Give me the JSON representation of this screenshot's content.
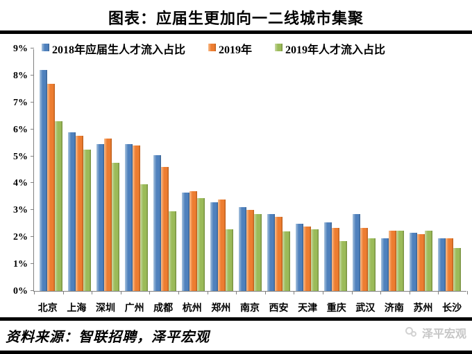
{
  "header": {
    "title": "图表：应届生更加向一二线城市集聚"
  },
  "chart_data": {
    "type": "bar",
    "title": "图表：应届生更加向一二线城市集聚",
    "categories": [
      "北京",
      "上海",
      "深圳",
      "广州",
      "成都",
      "杭州",
      "郑州",
      "南京",
      "西安",
      "天津",
      "重庆",
      "武汉",
      "济南",
      "苏州",
      "长沙"
    ],
    "series": [
      {
        "name": "2018年应届生人才流入占比",
        "color": "#4f81bd",
        "values": [
          8.2,
          5.9,
          5.45,
          5.45,
          5.05,
          3.65,
          3.3,
          3.1,
          2.85,
          2.5,
          2.55,
          2.85,
          1.95,
          2.15,
          1.95
        ]
      },
      {
        "name": "2019年",
        "color": "#ed7d31",
        "values": [
          7.7,
          5.75,
          5.65,
          5.4,
          4.6,
          3.7,
          3.4,
          3.0,
          2.75,
          2.4,
          2.35,
          2.35,
          2.25,
          2.1,
          1.95
        ]
      },
      {
        "name": "2019年人才流入占比",
        "color": "#9bbb59",
        "values": [
          6.3,
          5.25,
          4.75,
          3.95,
          2.95,
          3.45,
          2.3,
          2.85,
          2.2,
          2.3,
          1.85,
          1.95,
          2.25,
          2.25,
          1.6
        ]
      }
    ],
    "xlabel": "",
    "ylabel": "",
    "ylim": [
      0,
      9
    ],
    "y_tick_labels": [
      "0%",
      "1%",
      "2%",
      "3%",
      "4%",
      "5%",
      "6%",
      "7%",
      "8%",
      "9%"
    ],
    "grid": false,
    "legend_position": "top-left",
    "axis_color": "#808080"
  },
  "footer": {
    "source": "资料来源：智联招聘，泽平宏观",
    "watermark": "泽平宏观"
  }
}
